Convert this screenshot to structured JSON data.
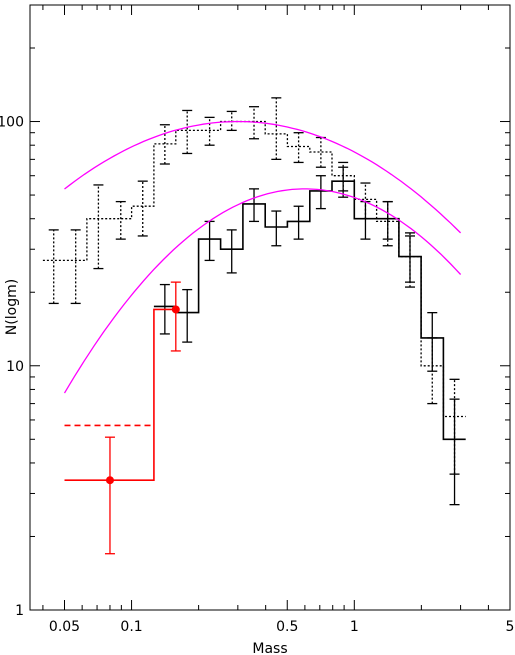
{
  "chart_data": {
    "type": "line",
    "title": "",
    "xlabel": "Mass",
    "ylabel": "N(logm)",
    "x_scale": "log",
    "y_scale": "log",
    "xlim": [
      0.035,
      5
    ],
    "ylim": [
      1,
      300
    ],
    "x_ticks": [
      {
        "value": 0.05,
        "label": "0.05"
      },
      {
        "value": 0.1,
        "label": "0.1"
      },
      {
        "value": 0.5,
        "label": "0.5"
      },
      {
        "value": 1,
        "label": "1"
      },
      {
        "value": 5,
        "label": "5"
      }
    ],
    "y_ticks": [
      {
        "value": 1,
        "label": "1"
      },
      {
        "value": 10,
        "label": "10"
      },
      {
        "value": 100,
        "label": "100"
      }
    ],
    "grid": false,
    "colors": {
      "black": "#000000",
      "red": "#ff0000",
      "magenta": "#ff00ff"
    },
    "series": [
      {
        "style": "dotted-step",
        "color": "#000000",
        "steps": [
          {
            "x0": 0.04,
            "x1": 0.05,
            "y": 27,
            "yerr": [
              18,
              36
            ]
          },
          {
            "x0": 0.05,
            "x1": 0.063,
            "y": 27,
            "yerr": [
              18,
              36
            ]
          },
          {
            "x0": 0.063,
            "x1": 0.08,
            "y": 40,
            "yerr": [
              25,
              55
            ]
          },
          {
            "x0": 0.08,
            "x1": 0.1,
            "y": 40,
            "yerr": [
              33,
              47
            ]
          },
          {
            "x0": 0.1,
            "x1": 0.126,
            "y": 45,
            "yerr": [
              34,
              57
            ]
          },
          {
            "x0": 0.126,
            "x1": 0.158,
            "y": 81,
            "yerr": [
              67,
              97
            ]
          },
          {
            "x0": 0.158,
            "x1": 0.2,
            "y": 92,
            "yerr": [
              74,
              111
            ]
          },
          {
            "x0": 0.2,
            "x1": 0.251,
            "y": 92,
            "yerr": [
              80,
              104
            ]
          },
          {
            "x0": 0.251,
            "x1": 0.316,
            "y": 100,
            "yerr": [
              92,
              110
            ]
          },
          {
            "x0": 0.316,
            "x1": 0.398,
            "y": 100,
            "yerr": [
              85,
              115
            ]
          },
          {
            "x0": 0.398,
            "x1": 0.501,
            "y": 89,
            "yerr": [
              70,
              125
            ]
          },
          {
            "x0": 0.501,
            "x1": 0.631,
            "y": 79,
            "yerr": [
              68,
              90
            ]
          },
          {
            "x0": 0.631,
            "x1": 0.794,
            "y": 75,
            "yerr": [
              65,
              86
            ]
          },
          {
            "x0": 0.794,
            "x1": 1.0,
            "y": 60,
            "yerr": [
              52,
              68
            ]
          },
          {
            "x0": 1.0,
            "x1": 1.259,
            "y": 48,
            "yerr": [
              40,
              56
            ]
          },
          {
            "x0": 1.259,
            "x1": 1.585,
            "y": 39,
            "yerr": [
              31,
              47
            ]
          },
          {
            "x0": 1.585,
            "x1": 1.995,
            "y": 28,
            "yerr": [
              21,
              35
            ]
          },
          {
            "x0": 1.995,
            "x1": 2.512,
            "y": 10,
            "yerr": [
              7,
              13
            ]
          },
          {
            "x0": 2.512,
            "x1": 3.162,
            "y": 6.2,
            "yerr": [
              3.6,
              8.8
            ]
          }
        ]
      },
      {
        "style": "solid-step",
        "color": "#000000",
        "steps": [
          {
            "x0": 0.126,
            "x1": 0.158,
            "y": 17.5,
            "yerr": [
              13.5,
              21.5
            ]
          },
          {
            "x0": 0.158,
            "x1": 0.2,
            "y": 16.5,
            "yerr": [
              12.5,
              20.5
            ]
          },
          {
            "x0": 0.2,
            "x1": 0.251,
            "y": 33,
            "yerr": [
              27,
              39
            ]
          },
          {
            "x0": 0.251,
            "x1": 0.316,
            "y": 30,
            "yerr": [
              24,
              36
            ]
          },
          {
            "x0": 0.316,
            "x1": 0.398,
            "y": 46,
            "yerr": [
              39,
              53
            ]
          },
          {
            "x0": 0.398,
            "x1": 0.501,
            "y": 37,
            "yerr": [
              31,
              43
            ]
          },
          {
            "x0": 0.501,
            "x1": 0.631,
            "y": 39,
            "yerr": [
              33,
              45
            ]
          },
          {
            "x0": 0.631,
            "x1": 0.794,
            "y": 52,
            "yerr": [
              44,
              60
            ]
          },
          {
            "x0": 0.794,
            "x1": 1.0,
            "y": 57,
            "yerr": [
              49,
              65
            ]
          },
          {
            "x0": 1.0,
            "x1": 1.259,
            "y": 40,
            "yerr": [
              33,
              47
            ]
          },
          {
            "x0": 1.259,
            "x1": 1.585,
            "y": 40,
            "yerr": [
              33,
              47
            ]
          },
          {
            "x0": 1.585,
            "x1": 1.995,
            "y": 28,
            "yerr": [
              22,
              34
            ]
          },
          {
            "x0": 1.995,
            "x1": 2.512,
            "y": 13,
            "yerr": [
              9.5,
              16.5
            ]
          },
          {
            "x0": 2.512,
            "x1": 3.162,
            "y": 5,
            "yerr": [
              2.7,
              7.3
            ]
          }
        ]
      },
      {
        "style": "red-step",
        "color": "#ff0000",
        "steps": [
          {
            "x0": 0.05,
            "x1": 0.126,
            "y": 3.4
          },
          {
            "x0": 0.126,
            "x1": 0.158,
            "y": 17
          }
        ],
        "dashed_level": {
          "x0": 0.05,
          "x1": 0.126,
          "y": 5.7
        },
        "points": [
          {
            "x": 0.08,
            "y": 3.4,
            "yerr": [
              1.7,
              5.1
            ]
          },
          {
            "x": 0.158,
            "y": 17,
            "yerr": [
              11.5,
              22
            ]
          }
        ]
      },
      {
        "style": "curve",
        "color": "#ff00ff",
        "x_range": [
          0.05,
          3.0
        ],
        "peak_x": 0.6,
        "peak_y": 53,
        "sigma": 0.55
      },
      {
        "style": "curve",
        "color": "#ff00ff",
        "x_range": [
          0.05,
          3.0
        ],
        "peak_x": 0.3,
        "peak_y": 100,
        "sigma": 0.69
      }
    ]
  }
}
